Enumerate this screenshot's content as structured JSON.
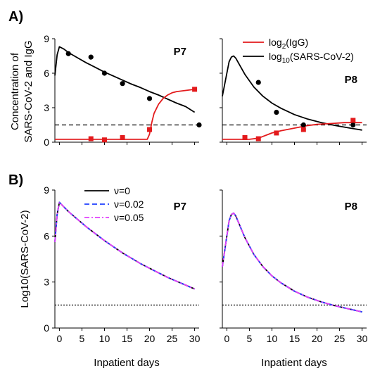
{
  "labels": {
    "panel_a": "A)",
    "panel_b": "B)",
    "ylabel_a_line1": "Concentration of",
    "ylabel_a_line2": "SARS-CoV-2 and IgG",
    "ylabel_b": "Log10(SARS-CoV-2)",
    "xlabel": "Inpatient days"
  },
  "legend_a": [
    {
      "base": "log",
      "sub": "2",
      "rest": "(IgG)",
      "color": "#e31a1c"
    },
    {
      "base": "log",
      "sub": "10",
      "rest": "(SARS-CoV-2)",
      "color": "#000000"
    }
  ],
  "legend_b": [
    {
      "label": "ν=0",
      "color": "#000000",
      "dash": "solid"
    },
    {
      "label": "ν=0.02",
      "color": "#1f3fff",
      "dash": "dashed"
    },
    {
      "label": "ν=0.05",
      "color": "#e040fb",
      "dash": "dashdot"
    }
  ],
  "chart_data": [
    {
      "type": "line",
      "panel": "A",
      "title": "P7",
      "xlim": [
        -1,
        31
      ],
      "ylim": [
        0,
        9
      ],
      "yticks": [
        0,
        3,
        6,
        9
      ],
      "xticks": [
        0,
        5,
        10,
        15,
        20,
        25,
        30
      ],
      "threshold": 1.5,
      "series": [
        {
          "name": "log10(SARS-CoV-2)",
          "color": "#000000",
          "x": [
            -1,
            -0.5,
            0,
            1,
            2,
            4,
            6,
            8,
            10,
            12,
            14,
            16,
            18,
            20,
            22,
            24,
            26,
            28,
            30
          ],
          "y": [
            5.8,
            7.6,
            8.3,
            8.1,
            7.8,
            7.35,
            6.9,
            6.5,
            6.1,
            5.75,
            5.4,
            5.05,
            4.75,
            4.4,
            4.1,
            3.75,
            3.4,
            3.1,
            2.6
          ]
        },
        {
          "name": "log2(IgG)",
          "color": "#e31a1c",
          "x": [
            -1,
            5,
            10,
            15,
            19.5,
            20,
            20.5,
            21,
            22,
            23,
            24,
            25,
            26,
            28,
            30
          ],
          "y": [
            0.25,
            0.25,
            0.25,
            0.25,
            0.25,
            0.7,
            1.7,
            2.5,
            3.3,
            3.8,
            4.1,
            4.3,
            4.4,
            4.5,
            4.6
          ]
        }
      ],
      "points_virus": {
        "x": [
          2,
          7,
          10,
          14,
          20,
          31
        ],
        "y": [
          7.7,
          7.4,
          6.0,
          5.1,
          3.8,
          1.5
        ]
      },
      "points_igg": {
        "x": [
          7,
          10,
          14,
          20,
          30
        ],
        "y": [
          0.3,
          0.2,
          0.4,
          1.1,
          4.6
        ]
      }
    },
    {
      "type": "line",
      "panel": "A",
      "title": "P8",
      "xlim": [
        -1,
        31
      ],
      "ylim": [
        0,
        9
      ],
      "yticks": [
        0,
        3,
        6,
        9
      ],
      "xticks": [
        0,
        5,
        10,
        15,
        20,
        25,
        30
      ],
      "threshold": 1.5,
      "series": [
        {
          "name": "log10(SARS-CoV-2)",
          "color": "#000000",
          "x": [
            -1,
            0,
            0.5,
            1,
            1.5,
            2,
            3,
            4,
            6,
            8,
            10,
            12,
            15,
            18,
            21,
            24,
            27,
            30
          ],
          "y": [
            4.0,
            6.0,
            7.0,
            7.4,
            7.5,
            7.3,
            6.6,
            5.9,
            4.8,
            4.0,
            3.4,
            2.95,
            2.4,
            2.0,
            1.7,
            1.45,
            1.25,
            1.05
          ]
        },
        {
          "name": "log2(IgG)",
          "color": "#e31a1c",
          "x": [
            -1,
            5,
            7,
            8,
            10,
            12,
            14,
            16,
            18,
            20,
            22,
            24,
            26,
            28,
            30
          ],
          "y": [
            0.25,
            0.25,
            0.35,
            0.5,
            0.8,
            1.0,
            1.15,
            1.3,
            1.45,
            1.55,
            1.6,
            1.65,
            1.7,
            1.7,
            1.7
          ]
        }
      ],
      "points_virus": {
        "x": [
          7,
          11,
          17,
          28
        ],
        "y": [
          5.2,
          2.6,
          1.5,
          1.5
        ]
      },
      "points_igg": {
        "x": [
          4,
          7,
          11,
          17,
          28
        ],
        "y": [
          0.4,
          0.3,
          0.8,
          1.1,
          1.9
        ]
      }
    },
    {
      "type": "line",
      "panel": "B",
      "title": "P7",
      "xlim": [
        -1,
        31
      ],
      "ylim": [
        0,
        9
      ],
      "yticks": [
        0,
        3,
        6,
        9
      ],
      "xticks": [
        0,
        5,
        10,
        15,
        20,
        25,
        30
      ],
      "threshold": 1.5,
      "series": [
        {
          "name": "ν=0",
          "color": "#000000",
          "dash": "solid",
          "x": [
            -1,
            -0.5,
            0,
            1,
            2,
            4,
            6,
            8,
            10,
            12,
            14,
            16,
            18,
            20,
            22,
            24,
            26,
            28,
            30
          ],
          "y": [
            5.6,
            7.4,
            8.2,
            7.9,
            7.6,
            7.1,
            6.6,
            6.15,
            5.7,
            5.3,
            4.9,
            4.55,
            4.2,
            3.9,
            3.6,
            3.3,
            3.05,
            2.8,
            2.55
          ]
        },
        {
          "name": "ν=0.02",
          "color": "#1f3fff",
          "dash": "dashed",
          "x": [
            -1,
            -0.5,
            0,
            1,
            2,
            4,
            6,
            8,
            10,
            12,
            14,
            16,
            18,
            20,
            22,
            24,
            26,
            28,
            30
          ],
          "y": [
            5.6,
            7.4,
            8.2,
            7.9,
            7.6,
            7.1,
            6.6,
            6.15,
            5.7,
            5.3,
            4.9,
            4.55,
            4.2,
            3.9,
            3.6,
            3.3,
            3.05,
            2.8,
            2.55
          ]
        },
        {
          "name": "ν=0.05",
          "color": "#e040fb",
          "dash": "dashdot",
          "x": [
            -1,
            -0.5,
            0,
            1,
            2,
            4,
            6,
            8,
            10,
            12,
            14,
            16,
            18,
            20,
            22,
            24,
            26,
            28,
            30
          ],
          "y": [
            5.6,
            7.4,
            8.2,
            7.9,
            7.6,
            7.1,
            6.6,
            6.15,
            5.7,
            5.3,
            4.9,
            4.55,
            4.2,
            3.9,
            3.6,
            3.3,
            3.05,
            2.8,
            2.55
          ]
        }
      ]
    },
    {
      "type": "line",
      "panel": "B",
      "title": "P8",
      "xlim": [
        -1,
        31
      ],
      "ylim": [
        0,
        9
      ],
      "yticks": [
        0,
        3,
        6,
        9
      ],
      "xticks": [
        0,
        5,
        10,
        15,
        20,
        25,
        30
      ],
      "threshold": 1.5,
      "series": [
        {
          "name": "ν=0",
          "color": "#000000",
          "dash": "solid",
          "x": [
            -1,
            0,
            0.5,
            1,
            1.5,
            2,
            3,
            4,
            6,
            8,
            10,
            12,
            15,
            18,
            21,
            24,
            27,
            30
          ],
          "y": [
            4.0,
            6.0,
            7.0,
            7.4,
            7.5,
            7.3,
            6.6,
            5.9,
            4.8,
            4.0,
            3.4,
            2.95,
            2.4,
            2.0,
            1.7,
            1.45,
            1.25,
            1.05
          ]
        },
        {
          "name": "ν=0.02",
          "color": "#1f3fff",
          "dash": "dashed",
          "x": [
            -1,
            0,
            0.5,
            1,
            1.5,
            2,
            3,
            4,
            6,
            8,
            10,
            12,
            15,
            18,
            21,
            24,
            27,
            30
          ],
          "y": [
            4.0,
            6.0,
            7.0,
            7.4,
            7.5,
            7.3,
            6.6,
            5.9,
            4.8,
            4.0,
            3.4,
            2.95,
            2.4,
            2.0,
            1.7,
            1.45,
            1.25,
            1.05
          ]
        },
        {
          "name": "ν=0.05",
          "color": "#e040fb",
          "dash": "dashdot",
          "x": [
            -1,
            0,
            0.5,
            1,
            1.5,
            2,
            3,
            4,
            6,
            8,
            10,
            12,
            15,
            18,
            21,
            24,
            27,
            30
          ],
          "y": [
            4.0,
            6.0,
            7.0,
            7.4,
            7.5,
            7.3,
            6.6,
            5.9,
            4.8,
            4.0,
            3.4,
            2.95,
            2.4,
            2.0,
            1.7,
            1.45,
            1.25,
            1.05
          ]
        }
      ]
    }
  ]
}
